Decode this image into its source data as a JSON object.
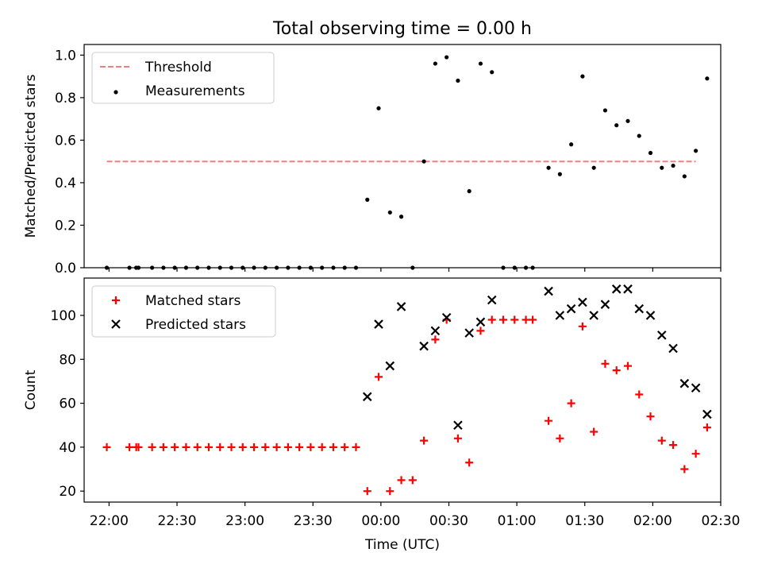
{
  "title": "Total observing time = 0.00 h",
  "chart_data": [
    {
      "type": "scatter",
      "panel": "top",
      "xlabel": "",
      "ylabel": "Matched/Predicted stars",
      "xlim": [
        "21:49",
        "02:30"
      ],
      "ylim": [
        0.0,
        1.05
      ],
      "yticks": [
        0.0,
        0.2,
        0.4,
        0.6,
        0.8,
        1.0
      ],
      "ytick_labels": [
        "0.0",
        "0.2",
        "0.4",
        "0.6",
        "0.8",
        "1.0"
      ],
      "legend": {
        "placement": "top-left",
        "entries": [
          "Threshold",
          "Measurements"
        ]
      },
      "threshold": {
        "name": "Threshold",
        "value": 0.5,
        "x_start": "21:59",
        "x_end": "02:19",
        "color": "#f08080",
        "style": "dashed"
      },
      "series": [
        {
          "name": "Measurements",
          "color": "#000000",
          "marker": "dot",
          "points": [
            [
              "21:59",
              0.0
            ],
            [
              "22:09",
              0.0
            ],
            [
              "22:12",
              0.0
            ],
            [
              "22:13",
              0.0
            ],
            [
              "22:19",
              0.0
            ],
            [
              "22:24",
              0.0
            ],
            [
              "22:29",
              0.0
            ],
            [
              "22:34",
              0.0
            ],
            [
              "22:39",
              0.0
            ],
            [
              "22:44",
              0.0
            ],
            [
              "22:49",
              0.0
            ],
            [
              "22:54",
              0.0
            ],
            [
              "22:59",
              0.0
            ],
            [
              "23:04",
              0.0
            ],
            [
              "23:09",
              0.0
            ],
            [
              "23:14",
              0.0
            ],
            [
              "23:19",
              0.0
            ],
            [
              "23:24",
              0.0
            ],
            [
              "23:29",
              0.0
            ],
            [
              "23:34",
              0.0
            ],
            [
              "23:39",
              0.0
            ],
            [
              "23:44",
              0.0
            ],
            [
              "23:49",
              0.0
            ],
            [
              "23:54",
              0.32
            ],
            [
              "23:59",
              0.75
            ],
            [
              "00:04",
              0.26
            ],
            [
              "00:09",
              0.24
            ],
            [
              "00:14",
              0.0
            ],
            [
              "00:19",
              0.5
            ],
            [
              "00:24",
              0.96
            ],
            [
              "00:29",
              0.99
            ],
            [
              "00:34",
              0.88
            ],
            [
              "00:39",
              0.36
            ],
            [
              "00:44",
              0.96
            ],
            [
              "00:49",
              0.92
            ],
            [
              "00:54",
              0.0
            ],
            [
              "00:59",
              0.0
            ],
            [
              "01:04",
              0.0
            ],
            [
              "01:07",
              0.0
            ],
            [
              "01:14",
              0.47
            ],
            [
              "01:19",
              0.44
            ],
            [
              "01:24",
              0.58
            ],
            [
              "01:29",
              0.9
            ],
            [
              "01:34",
              0.47
            ],
            [
              "01:39",
              0.74
            ],
            [
              "01:44",
              0.67
            ],
            [
              "01:49",
              0.69
            ],
            [
              "01:54",
              0.62
            ],
            [
              "01:59",
              0.54
            ],
            [
              "02:04",
              0.47
            ],
            [
              "02:09",
              0.48
            ],
            [
              "02:14",
              0.43
            ],
            [
              "02:19",
              0.55
            ],
            [
              "02:24",
              0.89
            ]
          ]
        }
      ]
    },
    {
      "type": "scatter",
      "panel": "bottom",
      "xlabel": "Time (UTC)",
      "ylabel": "Count",
      "xlim": [
        "21:49",
        "02:30"
      ],
      "ylim": [
        15,
        117
      ],
      "xticks": [
        "22:00",
        "22:30",
        "23:00",
        "23:30",
        "00:00",
        "00:30",
        "01:00",
        "01:30",
        "02:00",
        "02:30"
      ],
      "yticks": [
        20,
        40,
        60,
        80,
        100
      ],
      "ytick_labels": [
        "20",
        "40",
        "60",
        "80",
        "100"
      ],
      "legend": {
        "placement": "top-left",
        "entries": [
          "Matched stars",
          "Predicted stars"
        ]
      },
      "series": [
        {
          "name": "Matched stars",
          "color": "#ff0000",
          "marker": "plus",
          "points": [
            [
              "21:59",
              40
            ],
            [
              "22:09",
              40
            ],
            [
              "22:12",
              40
            ],
            [
              "22:13",
              40
            ],
            [
              "22:19",
              40
            ],
            [
              "22:24",
              40
            ],
            [
              "22:29",
              40
            ],
            [
              "22:34",
              40
            ],
            [
              "22:39",
              40
            ],
            [
              "22:44",
              40
            ],
            [
              "22:49",
              40
            ],
            [
              "22:54",
              40
            ],
            [
              "22:59",
              40
            ],
            [
              "23:04",
              40
            ],
            [
              "23:09",
              40
            ],
            [
              "23:14",
              40
            ],
            [
              "23:19",
              40
            ],
            [
              "23:24",
              40
            ],
            [
              "23:29",
              40
            ],
            [
              "23:34",
              40
            ],
            [
              "23:39",
              40
            ],
            [
              "23:44",
              40
            ],
            [
              "23:49",
              40
            ],
            [
              "23:54",
              20
            ],
            [
              "23:59",
              72
            ],
            [
              "00:04",
              20
            ],
            [
              "00:09",
              25
            ],
            [
              "00:14",
              25
            ],
            [
              "00:19",
              43
            ],
            [
              "00:24",
              89
            ],
            [
              "00:29",
              98
            ],
            [
              "00:34",
              44
            ],
            [
              "00:39",
              33
            ],
            [
              "00:44",
              93
            ],
            [
              "00:49",
              98
            ],
            [
              "00:54",
              98
            ],
            [
              "00:59",
              98
            ],
            [
              "01:04",
              98
            ],
            [
              "01:07",
              98
            ],
            [
              "01:14",
              52
            ],
            [
              "01:19",
              44
            ],
            [
              "01:24",
              60
            ],
            [
              "01:29",
              95
            ],
            [
              "01:34",
              47
            ],
            [
              "01:39",
              78
            ],
            [
              "01:44",
              75
            ],
            [
              "01:49",
              77
            ],
            [
              "01:54",
              64
            ],
            [
              "01:59",
              54
            ],
            [
              "02:04",
              43
            ],
            [
              "02:09",
              41
            ],
            [
              "02:14",
              30
            ],
            [
              "02:19",
              37
            ],
            [
              "02:24",
              49
            ]
          ]
        },
        {
          "name": "Predicted stars",
          "color": "#000000",
          "marker": "x",
          "points": [
            [
              "23:54",
              63
            ],
            [
              "23:59",
              96
            ],
            [
              "00:04",
              77
            ],
            [
              "00:09",
              104
            ],
            [
              "00:19",
              86
            ],
            [
              "00:24",
              93
            ],
            [
              "00:29",
              99
            ],
            [
              "00:34",
              50
            ],
            [
              "00:39",
              92
            ],
            [
              "00:44",
              97
            ],
            [
              "00:49",
              107
            ],
            [
              "01:14",
              111
            ],
            [
              "01:19",
              100
            ],
            [
              "01:24",
              103
            ],
            [
              "01:29",
              106
            ],
            [
              "01:34",
              100
            ],
            [
              "01:39",
              105
            ],
            [
              "01:44",
              112
            ],
            [
              "01:49",
              112
            ],
            [
              "01:54",
              103
            ],
            [
              "01:59",
              100
            ],
            [
              "02:04",
              91
            ],
            [
              "02:09",
              85
            ],
            [
              "02:14",
              69
            ],
            [
              "02:19",
              67
            ],
            [
              "02:24",
              55
            ]
          ]
        }
      ]
    }
  ]
}
